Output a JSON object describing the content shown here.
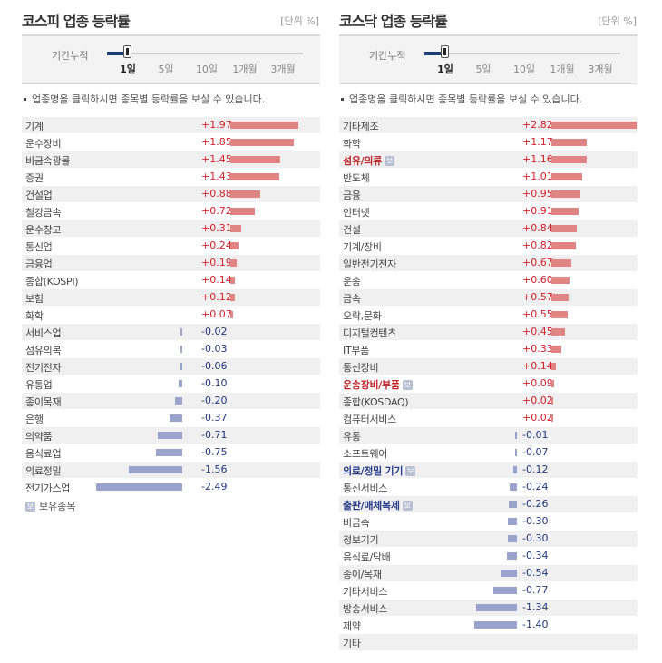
{
  "kospi": {
    "title": "코스피 업종 등락률",
    "unit": "[단위 %]",
    "period_label": "기간누적",
    "ticks": [
      "1일",
      "5일",
      "10일",
      "1개월",
      "3개월"
    ],
    "selected_tick": "1일",
    "note": "업종명을 클릭하시면 종목별 등락률을 보실 수 있습니다.",
    "legend_badge": "보",
    "legend_text": "보유종목",
    "rows": [
      {
        "name": "기계",
        "value": "+1.97",
        "num": 1.97
      },
      {
        "name": "운수장비",
        "value": "+1.85",
        "num": 1.85
      },
      {
        "name": "비금속광물",
        "value": "+1.45",
        "num": 1.45
      },
      {
        "name": "증권",
        "value": "+1.43",
        "num": 1.43
      },
      {
        "name": "건설업",
        "value": "+0.88",
        "num": 0.88
      },
      {
        "name": "철강금속",
        "value": "+0.72",
        "num": 0.72
      },
      {
        "name": "운수창고",
        "value": "+0.31",
        "num": 0.31
      },
      {
        "name": "통신업",
        "value": "+0.24",
        "num": 0.24
      },
      {
        "name": "금융업",
        "value": "+0.19",
        "num": 0.19
      },
      {
        "name": "종합(KOSPI)",
        "value": "+0.14",
        "num": 0.14
      },
      {
        "name": "보험",
        "value": "+0.12",
        "num": 0.12
      },
      {
        "name": "화학",
        "value": "+0.07",
        "num": 0.07
      },
      {
        "name": "서비스업",
        "value": "-0.02",
        "num": -0.02
      },
      {
        "name": "섬유의복",
        "value": "-0.03",
        "num": -0.03
      },
      {
        "name": "전기전자",
        "value": "-0.06",
        "num": -0.06
      },
      {
        "name": "유통업",
        "value": "-0.10",
        "num": -0.1
      },
      {
        "name": "종이목재",
        "value": "-0.20",
        "num": -0.2
      },
      {
        "name": "은행",
        "value": "-0.37",
        "num": -0.37
      },
      {
        "name": "의약품",
        "value": "-0.71",
        "num": -0.71
      },
      {
        "name": "음식료업",
        "value": "-0.75",
        "num": -0.75
      },
      {
        "name": "의료정밀",
        "value": "-1.56",
        "num": -1.56
      },
      {
        "name": "전기가스업",
        "value": "-2.49",
        "num": -2.49
      }
    ]
  },
  "kosdaq": {
    "title": "코스닥 업종 등락률",
    "unit": "[단위 %]",
    "period_label": "기간누적",
    "ticks": [
      "1일",
      "5일",
      "10일",
      "1개월",
      "3개월"
    ],
    "selected_tick": "1일",
    "note": "업종명을 클릭하시면 종목별 등락률을 보실 수 있습니다.",
    "rows": [
      {
        "name": "기타제조",
        "value": "+2.82",
        "num": 2.82
      },
      {
        "name": "화학",
        "value": "+1.17",
        "num": 1.17
      },
      {
        "name": "섬유/의류",
        "value": "+1.16",
        "num": 1.16,
        "held": true
      },
      {
        "name": "반도체",
        "value": "+1.01",
        "num": 1.01
      },
      {
        "name": "금융",
        "value": "+0.95",
        "num": 0.95
      },
      {
        "name": "인터넷",
        "value": "+0.91",
        "num": 0.91
      },
      {
        "name": "건설",
        "value": "+0.84",
        "num": 0.84
      },
      {
        "name": "기계/장비",
        "value": "+0.82",
        "num": 0.82
      },
      {
        "name": "일반전기전자",
        "value": "+0.67",
        "num": 0.67
      },
      {
        "name": "운송",
        "value": "+0.60",
        "num": 0.6
      },
      {
        "name": "금속",
        "value": "+0.57",
        "num": 0.57
      },
      {
        "name": "오락,문화",
        "value": "+0.55",
        "num": 0.55
      },
      {
        "name": "디지털컨텐츠",
        "value": "+0.45",
        "num": 0.45
      },
      {
        "name": "IT부품",
        "value": "+0.33",
        "num": 0.33
      },
      {
        "name": "통신장비",
        "value": "+0.14",
        "num": 0.14
      },
      {
        "name": "운송장비/부품",
        "value": "+0.09",
        "num": 0.09,
        "held": true
      },
      {
        "name": "종합(KOSDAQ)",
        "value": "+0.02",
        "num": 0.02
      },
      {
        "name": "컴퓨터서비스",
        "value": "+0.02",
        "num": 0.02
      },
      {
        "name": "유통",
        "value": "-0.01",
        "num": -0.01
      },
      {
        "name": "소프트웨어",
        "value": "-0.07",
        "num": -0.07
      },
      {
        "name": "의료/정밀 기기",
        "value": "-0.12",
        "num": -0.12,
        "held": true
      },
      {
        "name": "통신서비스",
        "value": "-0.24",
        "num": -0.24
      },
      {
        "name": "출판/매체복제",
        "value": "-0.26",
        "num": -0.26,
        "held": true
      },
      {
        "name": "비금속",
        "value": "-0.30",
        "num": -0.3
      },
      {
        "name": "정보기기",
        "value": "-0.30",
        "num": -0.3
      },
      {
        "name": "음식료/담배",
        "value": "-0.34",
        "num": -0.34
      },
      {
        "name": "종이/목재",
        "value": "-0.54",
        "num": -0.54
      },
      {
        "name": "기타서비스",
        "value": "-0.77",
        "num": -0.77
      },
      {
        "name": "방송서비스",
        "value": "-1.34",
        "num": -1.34
      },
      {
        "name": "제약",
        "value": "-1.40",
        "num": -1.4
      },
      {
        "name": "기타",
        "value": "",
        "num": 0
      }
    ]
  },
  "colors": {
    "up_text": "#d0202a",
    "down_text": "#24387a",
    "up_bar": "#e08584",
    "down_bar": "#9aa3cc"
  }
}
